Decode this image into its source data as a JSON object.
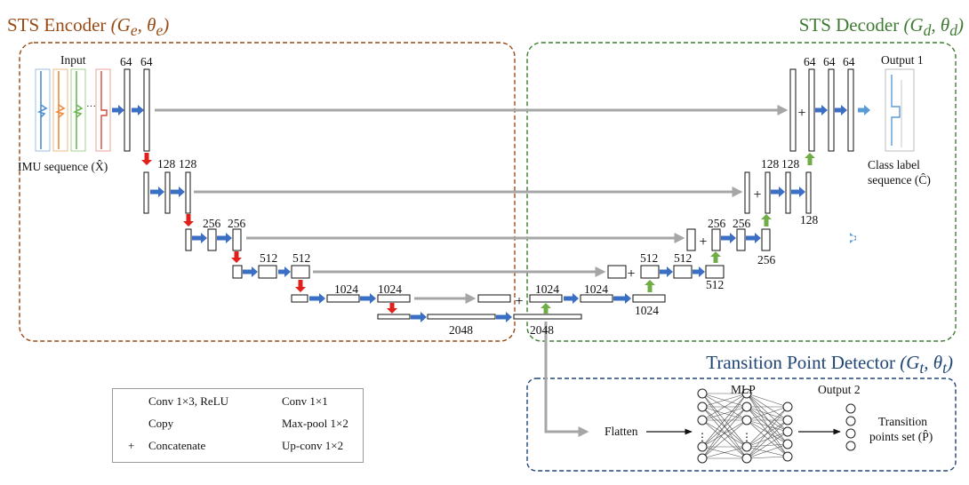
{
  "titles": {
    "encoder": "STS Encoder",
    "encoder_params": "(G",
    "encoder_sub": "e",
    "encoder_theta": ", θ",
    "encoder_theta_sub": "e",
    "encoder_close": ")",
    "decoder": "STS Decoder",
    "decoder_params": "(G",
    "decoder_sub": "d",
    "decoder_theta": ", θ",
    "decoder_theta_sub": "d",
    "decoder_close": ")",
    "tpd": "Transition Point Detector",
    "tpd_params": "(G",
    "tpd_sub": "t",
    "tpd_theta": ", θ",
    "tpd_theta_sub": "t",
    "tpd_close": ")"
  },
  "labels": {
    "input": "Input",
    "imu": "IMU sequence (X̂)",
    "output1": "Output 1",
    "class_label_1": "Class label",
    "class_label_2": "sequence (Ĉ)",
    "mlp": "MLP",
    "output2": "Output 2",
    "flatten": "Flatten",
    "transition_1": "Transition",
    "transition_2": "points set (P̂)",
    "ellipsis": "···"
  },
  "channels": {
    "e1a": "64",
    "e1b": "64",
    "e2a": "128",
    "e2b": "128",
    "e3a": "256",
    "e3b": "256",
    "e4a": "512",
    "e4b": "512",
    "e5a": "1024",
    "e5b": "1024",
    "bottom": "2048",
    "d5u": "1024",
    "d5b": "1024",
    "d5c": "1024",
    "d4a": "512",
    "d4b": "512",
    "d4c": "512",
    "d3a": "256",
    "d3b": "256",
    "d3c": "256",
    "d2a": "128",
    "d2b": "128",
    "d2c": "128",
    "d1a": "64",
    "d1b": "64",
    "d1c": "64",
    "dec_bottom": "2048"
  },
  "concat_symbol": "+",
  "legend": {
    "conv3": "Conv 1×3, ReLU",
    "conv1": "Conv 1×1",
    "copy": "Copy",
    "maxpool": "Max-pool 1×2",
    "concat_symbol": "+",
    "concat": "Concatenate",
    "upconv": "Up-conv 1×2"
  },
  "colors": {
    "conv3": "#3a6fc4",
    "conv1": "#5b9bd5",
    "copy": "#a6a6a6",
    "maxpool": "#e0201b",
    "upconv": "#70ad47",
    "encoder_border": "#9a4b15",
    "decoder_border": "#3f7b33",
    "tpd_border": "#1e4576",
    "imu_blue": "#4e8fd0",
    "imu_orange": "#ed8b3b",
    "imu_green": "#6cb555",
    "imu_red": "#d64a3a"
  }
}
